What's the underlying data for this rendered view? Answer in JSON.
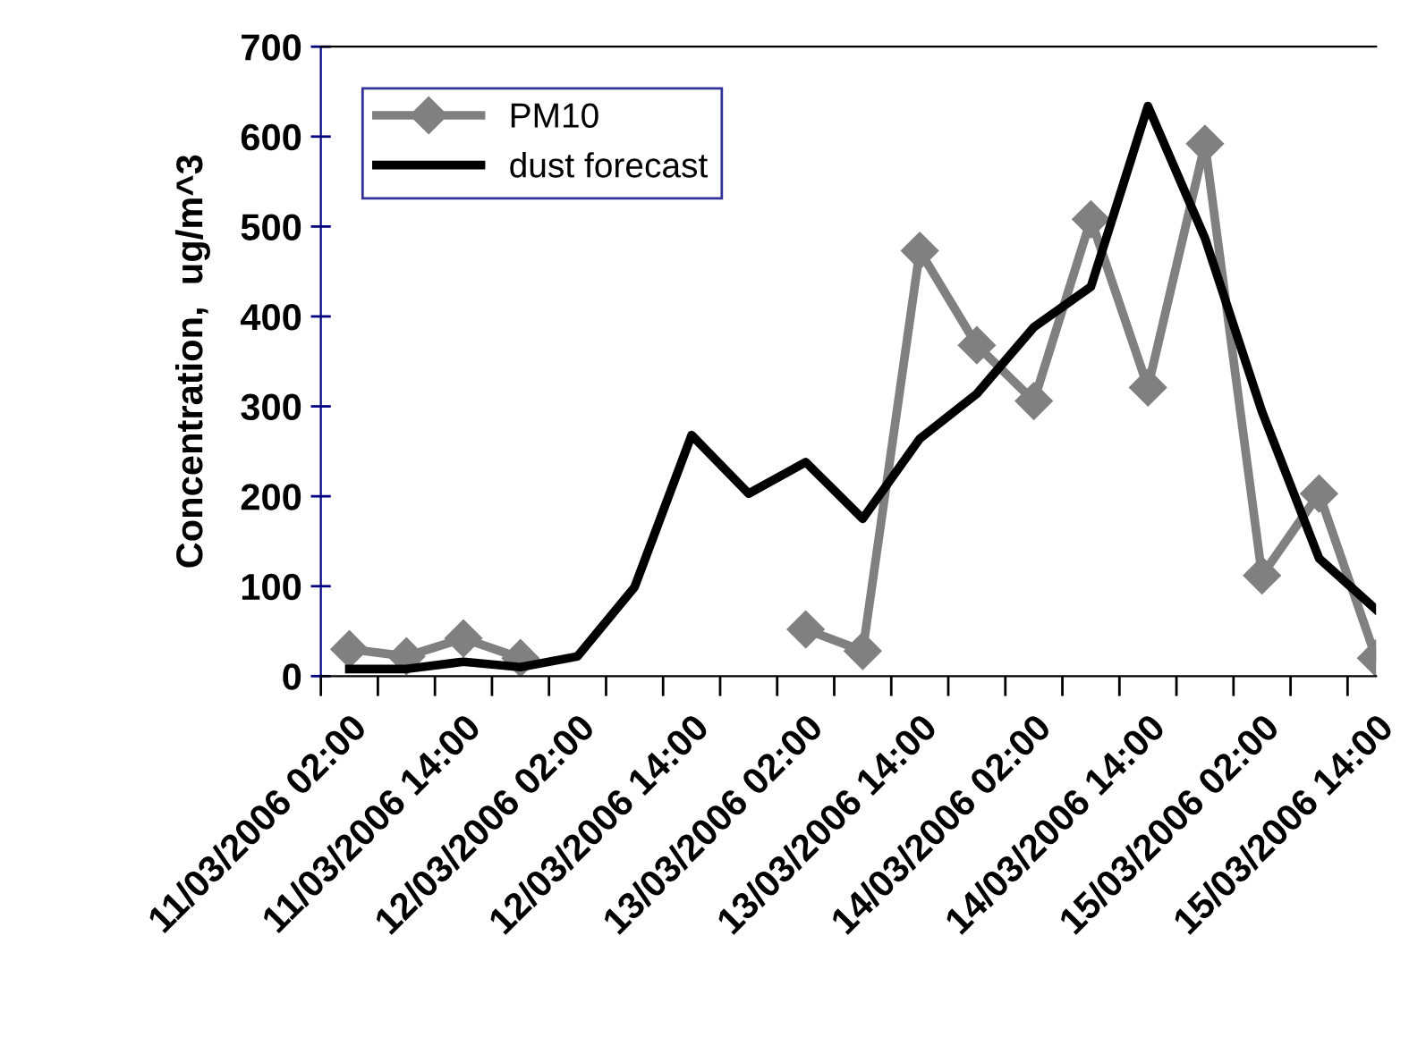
{
  "chart_data": {
    "type": "line",
    "ylabel": "Concentration,  ug/m^3",
    "categories": [
      "11/03/2006 02:00",
      null,
      "11/03/2006 14:00",
      null,
      "12/03/2006 02:00",
      null,
      "12/03/2006 14:00",
      null,
      "13/03/2006 02:00",
      null,
      "13/03/2006 14:00",
      null,
      "14/03/2006 02:00",
      null,
      "14/03/2006 14:00",
      null,
      "15/03/2006 02:00",
      null,
      "15/03/2006 14:00"
    ],
    "series": [
      {
        "name": "PM10",
        "color": "#808080",
        "marker": "diamond",
        "values": [
          30,
          22,
          42,
          20,
          null,
          null,
          null,
          null,
          52,
          28,
          473,
          368,
          306,
          508,
          321,
          592,
          112,
          203,
          20
        ]
      },
      {
        "name": "dust forecast",
        "color": "#000000",
        "marker": "none",
        "values": [
          8,
          8,
          16,
          10,
          22,
          99,
          268,
          203,
          238,
          175,
          264,
          314,
          388,
          433,
          634,
          487,
          294,
          131,
          74
        ]
      }
    ],
    "ylim": [
      0,
      700
    ],
    "yticks": [
      0,
      100,
      200,
      300,
      400,
      500,
      600,
      700
    ],
    "grid": false,
    "legend": "top left"
  }
}
